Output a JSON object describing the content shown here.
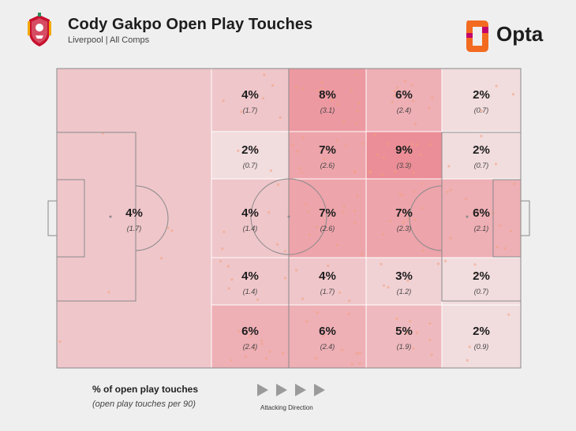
{
  "header": {
    "title": "Cody Gakpo Open Play Touches",
    "subtitle": "Liverpool | All Comps",
    "brand": "Opta"
  },
  "legend": {
    "main": "% of open play touches",
    "sub": "(open play touches per 90)",
    "direction": "Attacking Direction"
  },
  "colors": {
    "background": "#efefef",
    "pitch_line": "#8a8a8a",
    "heat_low": "#f2f2f2",
    "heat_high": "#ec8e97",
    "dots": "#f4a07a",
    "brand_orange": "#f26b21",
    "brand_magenta": "#c3006b",
    "crest_red": "#c8102e"
  },
  "chart_data": {
    "type": "heatmap",
    "columns": [
      "defensive-half",
      "attacking-third-1",
      "attacking-third-2",
      "attacking-third-3",
      "attacking-third-4"
    ],
    "rows": [
      "top",
      "upper",
      "middle",
      "lower",
      "bottom"
    ],
    "zones": [
      {
        "col": 0,
        "row": 0,
        "rowspan": 5,
        "pct": "4%",
        "per90": "(1.7)",
        "value": 4
      },
      {
        "col": 1,
        "row": 0,
        "pct": "4%",
        "per90": "(1.7)",
        "value": 4
      },
      {
        "col": 2,
        "row": 0,
        "pct": "8%",
        "per90": "(3.1)",
        "value": 8
      },
      {
        "col": 3,
        "row": 0,
        "pct": "6%",
        "per90": "(2.4)",
        "value": 6
      },
      {
        "col": 4,
        "row": 0,
        "pct": "2%",
        "per90": "(0.7)",
        "value": 2
      },
      {
        "col": 1,
        "row": 1,
        "pct": "2%",
        "per90": "(0.7)",
        "value": 2
      },
      {
        "col": 2,
        "row": 1,
        "pct": "7%",
        "per90": "(2.6)",
        "value": 7
      },
      {
        "col": 3,
        "row": 1,
        "pct": "9%",
        "per90": "(3.3)",
        "value": 9
      },
      {
        "col": 4,
        "row": 1,
        "pct": "2%",
        "per90": "(0.7)",
        "value": 2
      },
      {
        "col": 1,
        "row": 2,
        "pct": "4%",
        "per90": "(1.4)",
        "value": 4
      },
      {
        "col": 2,
        "row": 2,
        "pct": "7%",
        "per90": "(2.6)",
        "value": 7
      },
      {
        "col": 3,
        "row": 2,
        "pct": "7%",
        "per90": "(2.3)",
        "value": 7
      },
      {
        "col": 4,
        "row": 2,
        "pct": "6%",
        "per90": "(2.1)",
        "value": 6
      },
      {
        "col": 1,
        "row": 3,
        "pct": "4%",
        "per90": "(1.4)",
        "value": 4
      },
      {
        "col": 2,
        "row": 3,
        "pct": "4%",
        "per90": "(1.7)",
        "value": 4
      },
      {
        "col": 3,
        "row": 3,
        "pct": "3%",
        "per90": "(1.2)",
        "value": 3
      },
      {
        "col": 4,
        "row": 3,
        "pct": "2%",
        "per90": "(0.7)",
        "value": 2
      },
      {
        "col": 1,
        "row": 4,
        "pct": "6%",
        "per90": "(2.4)",
        "value": 6
      },
      {
        "col": 2,
        "row": 4,
        "pct": "6%",
        "per90": "(2.4)",
        "value": 6
      },
      {
        "col": 3,
        "row": 4,
        "pct": "5%",
        "per90": "(1.9)",
        "value": 5
      },
      {
        "col": 4,
        "row": 4,
        "pct": "2%",
        "per90": "(0.9)",
        "value": 2
      }
    ]
  }
}
